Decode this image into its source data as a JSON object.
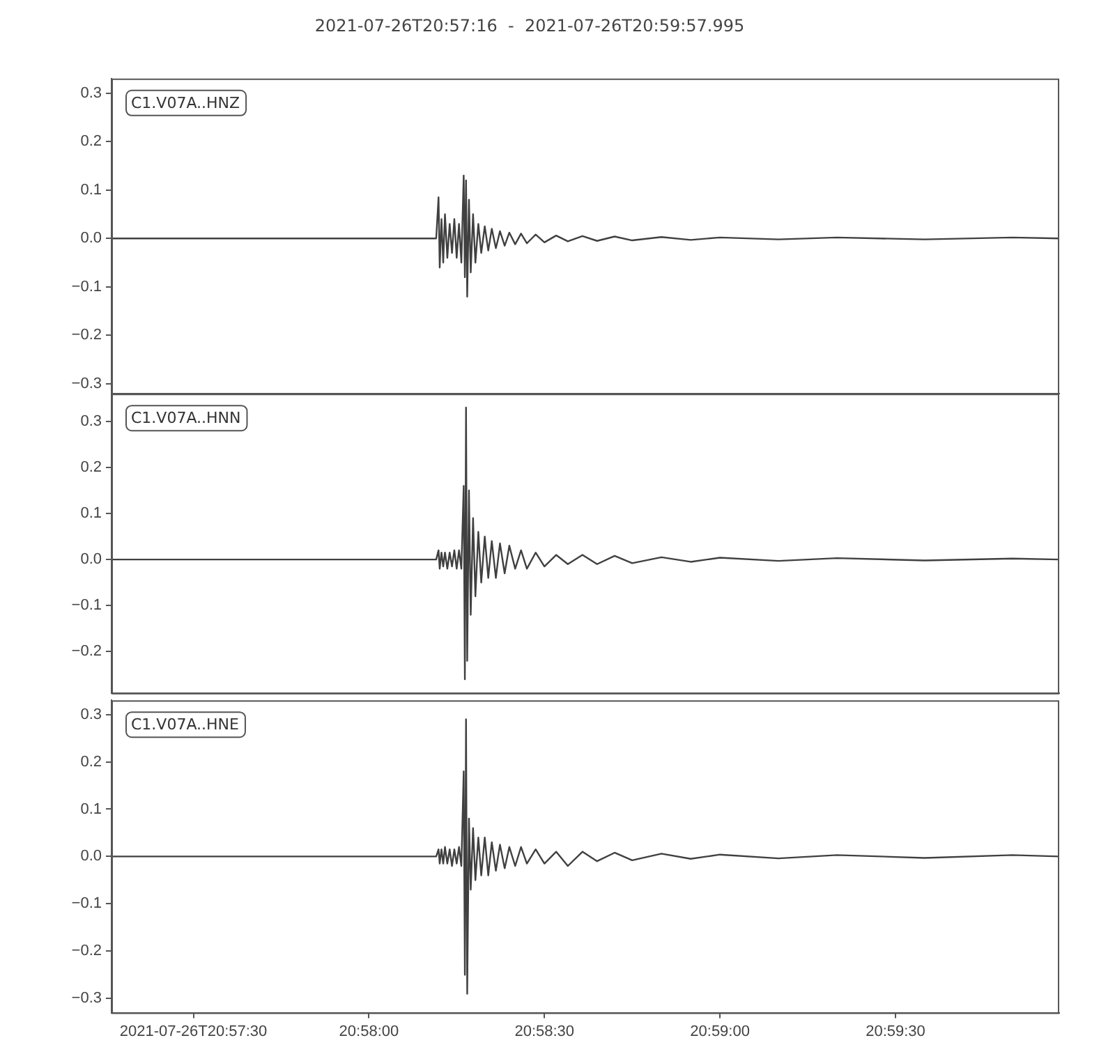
{
  "chart_data": [
    {
      "type": "line",
      "title": "2021-07-26T20:57:16  -  2021-07-26T20:59:57.995",
      "x": [
        "2021-07-26T20:57:16",
        "2021-07-26T20:57:40",
        "2021-07-26T20:58:00",
        "2021-07-26T20:58:11.5",
        "2021-07-26T20:58:11.9",
        "2021-07-26T20:58:12.1",
        "2021-07-26T20:58:12.4",
        "2021-07-26T20:58:12.7",
        "2021-07-26T20:58:13.0",
        "2021-07-26T20:58:13.4",
        "2021-07-26T20:58:13.8",
        "2021-07-26T20:58:14.2",
        "2021-07-26T20:58:14.6",
        "2021-07-26T20:58:15.0",
        "2021-07-26T20:58:15.4",
        "2021-07-26T20:58:15.8",
        "2021-07-26T20:58:16.2",
        "2021-07-26T20:58:16.4",
        "2021-07-26T20:58:16.6",
        "2021-07-26T20:58:16.8",
        "2021-07-26T20:58:17.1",
        "2021-07-26T20:58:17.4",
        "2021-07-26T20:58:17.8",
        "2021-07-26T20:58:18.2",
        "2021-07-26T20:58:18.7",
        "2021-07-26T20:58:19.2",
        "2021-07-26T20:58:19.8",
        "2021-07-26T20:58:20.4",
        "2021-07-26T20:58:21.0",
        "2021-07-26T20:58:21.7",
        "2021-07-26T20:58:22.4",
        "2021-07-26T20:58:23.2",
        "2021-07-26T20:58:24.0",
        "2021-07-26T20:58:25.0",
        "2021-07-26T20:58:26.0",
        "2021-07-26T20:58:27.0",
        "2021-07-26T20:58:28.5",
        "2021-07-26T20:58:30.0",
        "2021-07-26T20:58:32.0",
        "2021-07-26T20:58:34.0",
        "2021-07-26T20:58:36.5",
        "2021-07-26T20:58:39.0",
        "2021-07-26T20:58:42.0",
        "2021-07-26T20:58:45.0",
        "2021-07-26T20:58:50.0",
        "2021-07-26T20:58:55.0",
        "2021-07-26T20:59:00.0",
        "2021-07-26T20:59:10.0",
        "2021-07-26T20:59:20.0",
        "2021-07-26T20:59:35.0",
        "2021-07-26T20:59:50.0",
        "2021-07-26T20:59:57.995"
      ],
      "series": [
        {
          "name": "C1.V07A..HNZ",
          "color": "#404040",
          "values": [
            0,
            0,
            0,
            0,
            0.085,
            -0.06,
            0.04,
            -0.05,
            0.05,
            -0.04,
            0.03,
            -0.03,
            0.04,
            -0.04,
            0.03,
            -0.05,
            0.13,
            -0.08,
            0.12,
            -0.12,
            0.08,
            -0.07,
            0.05,
            -0.05,
            0.03,
            -0.03,
            0.025,
            -0.025,
            0.02,
            -0.02,
            0.015,
            -0.015,
            0.012,
            -0.012,
            0.01,
            -0.01,
            0.008,
            -0.008,
            0.006,
            -0.006,
            0.005,
            -0.005,
            0.004,
            -0.004,
            0.003,
            -0.003,
            0.002,
            -0.002,
            0.002,
            -0.002,
            0.002,
            0
          ]
        }
      ],
      "xlim": [
        "2021-07-26T20:57:16",
        "2021-07-26T20:59:57.995"
      ],
      "ylim": [
        -0.32,
        0.33
      ],
      "yticks": [
        {
          "value": -0.3,
          "label": "−0.3"
        },
        {
          "value": -0.2,
          "label": "−0.2"
        },
        {
          "value": -0.1,
          "label": "−0.1"
        },
        {
          "value": 0,
          "label": "0.0"
        },
        {
          "value": 0.1,
          "label": "0.1"
        },
        {
          "value": 0.2,
          "label": "0.2"
        },
        {
          "value": 0.3,
          "label": "0.3"
        }
      ],
      "tick_labels": "y",
      "legend": "top left",
      "marker": "none",
      "line_style": "solid"
    },
    {
      "type": "line",
      "x": [
        "2021-07-26T20:57:16",
        "2021-07-26T20:57:40",
        "2021-07-26T20:58:00",
        "2021-07-26T20:58:11.5",
        "2021-07-26T20:58:11.9",
        "2021-07-26T20:58:12.1",
        "2021-07-26T20:58:12.4",
        "2021-07-26T20:58:12.7",
        "2021-07-26T20:58:13.0",
        "2021-07-26T20:58:13.4",
        "2021-07-26T20:58:13.8",
        "2021-07-26T20:58:14.2",
        "2021-07-26T20:58:14.6",
        "2021-07-26T20:58:15.0",
        "2021-07-26T20:58:15.4",
        "2021-07-26T20:58:15.8",
        "2021-07-26T20:58:16.2",
        "2021-07-26T20:58:16.4",
        "2021-07-26T20:58:16.6",
        "2021-07-26T20:58:16.8",
        "2021-07-26T20:58:17.1",
        "2021-07-26T20:58:17.4",
        "2021-07-26T20:58:17.8",
        "2021-07-26T20:58:18.2",
        "2021-07-26T20:58:18.7",
        "2021-07-26T20:58:19.2",
        "2021-07-26T20:58:19.8",
        "2021-07-26T20:58:20.4",
        "2021-07-26T20:58:21.0",
        "2021-07-26T20:58:21.7",
        "2021-07-26T20:58:22.4",
        "2021-07-26T20:58:23.2",
        "2021-07-26T20:58:24.0",
        "2021-07-26T20:58:25.0",
        "2021-07-26T20:58:26.0",
        "2021-07-26T20:58:27.0",
        "2021-07-26T20:58:28.5",
        "2021-07-26T20:58:30.0",
        "2021-07-26T20:58:32.0",
        "2021-07-26T20:58:34.0",
        "2021-07-26T20:58:36.5",
        "2021-07-26T20:58:39.0",
        "2021-07-26T20:58:42.0",
        "2021-07-26T20:58:45.0",
        "2021-07-26T20:58:50.0",
        "2021-07-26T20:58:55.0",
        "2021-07-26T20:59:00.0",
        "2021-07-26T20:59:10.0",
        "2021-07-26T20:59:20.0",
        "2021-07-26T20:59:35.0",
        "2021-07-26T20:59:50.0",
        "2021-07-26T20:59:57.995"
      ],
      "series": [
        {
          "name": "C1.V07A..HNN",
          "color": "#404040",
          "values": [
            0,
            0,
            0,
            0,
            0.02,
            -0.02,
            0.015,
            -0.015,
            0.015,
            -0.02,
            0.015,
            -0.015,
            0.02,
            -0.02,
            0.02,
            -0.02,
            0.16,
            -0.26,
            0.33,
            -0.22,
            0.15,
            -0.12,
            0.09,
            -0.08,
            0.06,
            -0.05,
            0.05,
            -0.04,
            0.04,
            -0.04,
            0.035,
            -0.03,
            0.03,
            -0.02,
            0.02,
            -0.02,
            0.015,
            -0.015,
            0.01,
            -0.01,
            0.01,
            -0.01,
            0.008,
            -0.008,
            0.005,
            -0.005,
            0.004,
            -0.003,
            0.003,
            -0.002,
            0.002,
            0
          ]
        }
      ],
      "xlim": [
        "2021-07-26T20:57:16",
        "2021-07-26T20:59:57.995"
      ],
      "ylim": [
        -0.29,
        0.36
      ],
      "yticks": [
        {
          "value": -0.2,
          "label": "−0.2"
        },
        {
          "value": -0.1,
          "label": "−0.1"
        },
        {
          "value": 0,
          "label": "0.0"
        },
        {
          "value": 0.1,
          "label": "0.1"
        },
        {
          "value": 0.2,
          "label": "0.2"
        },
        {
          "value": 0.3,
          "label": "0.3"
        }
      ],
      "tick_labels": "y",
      "legend": "top left",
      "marker": "none",
      "line_style": "solid"
    },
    {
      "type": "line",
      "x": [
        "2021-07-26T20:57:16",
        "2021-07-26T20:57:40",
        "2021-07-26T20:58:00",
        "2021-07-26T20:58:11.5",
        "2021-07-26T20:58:11.9",
        "2021-07-26T20:58:12.1",
        "2021-07-26T20:58:12.4",
        "2021-07-26T20:58:12.7",
        "2021-07-26T20:58:13.0",
        "2021-07-26T20:58:13.4",
        "2021-07-26T20:58:13.8",
        "2021-07-26T20:58:14.2",
        "2021-07-26T20:58:14.6",
        "2021-07-26T20:58:15.0",
        "2021-07-26T20:58:15.4",
        "2021-07-26T20:58:15.8",
        "2021-07-26T20:58:16.2",
        "2021-07-26T20:58:16.4",
        "2021-07-26T20:58:16.6",
        "2021-07-26T20:58:16.8",
        "2021-07-26T20:58:17.1",
        "2021-07-26T20:58:17.4",
        "2021-07-26T20:58:17.8",
        "2021-07-26T20:58:18.2",
        "2021-07-26T20:58:18.7",
        "2021-07-26T20:58:19.2",
        "2021-07-26T20:58:19.8",
        "2021-07-26T20:58:20.4",
        "2021-07-26T20:58:21.0",
        "2021-07-26T20:58:21.7",
        "2021-07-26T20:58:22.4",
        "2021-07-26T20:58:23.2",
        "2021-07-26T20:58:24.0",
        "2021-07-26T20:58:25.0",
        "2021-07-26T20:58:26.0",
        "2021-07-26T20:58:27.0",
        "2021-07-26T20:58:28.5",
        "2021-07-26T20:58:30.0",
        "2021-07-26T20:58:32.0",
        "2021-07-26T20:58:34.0",
        "2021-07-26T20:58:36.5",
        "2021-07-26T20:58:39.0",
        "2021-07-26T20:58:42.0",
        "2021-07-26T20:58:45.0",
        "2021-07-26T20:58:50.0",
        "2021-07-26T20:58:55.0",
        "2021-07-26T20:59:00.0",
        "2021-07-26T20:59:10.0",
        "2021-07-26T20:59:20.0",
        "2021-07-26T20:59:35.0",
        "2021-07-26T20:59:50.0",
        "2021-07-26T20:59:57.995"
      ],
      "series": [
        {
          "name": "C1.V07A..HNE",
          "color": "#404040",
          "values": [
            0,
            0,
            0,
            0,
            0.015,
            -0.015,
            0.015,
            -0.015,
            0.02,
            -0.015,
            0.015,
            -0.02,
            0.015,
            -0.015,
            0.02,
            -0.02,
            0.18,
            -0.25,
            0.29,
            -0.29,
            0.08,
            -0.07,
            0.06,
            -0.05,
            0.04,
            -0.04,
            0.04,
            -0.04,
            0.03,
            -0.03,
            0.025,
            -0.025,
            0.02,
            -0.02,
            0.02,
            -0.015,
            0.015,
            -0.015,
            0.01,
            -0.02,
            0.01,
            -0.01,
            0.008,
            -0.008,
            0.006,
            -0.005,
            0.004,
            -0.004,
            0.003,
            -0.003,
            0.003,
            0
          ]
        }
      ],
      "xlim": [
        "2021-07-26T20:57:16",
        "2021-07-26T20:59:57.995"
      ],
      "xticks": [
        {
          "value": "2021-07-26T20:57:30",
          "label": "2021-07-26T20:57:30"
        },
        {
          "value": "2021-07-26T20:58:00",
          "label": "20:58:00"
        },
        {
          "value": "2021-07-26T20:58:30",
          "label": "20:58:30"
        },
        {
          "value": "2021-07-26T20:59:00",
          "label": "20:59:00"
        },
        {
          "value": "2021-07-26T20:59:30",
          "label": "20:59:30"
        }
      ],
      "ylim": [
        -0.33,
        0.33
      ],
      "yticks": [
        {
          "value": -0.3,
          "label": "−0.3"
        },
        {
          "value": -0.2,
          "label": "−0.2"
        },
        {
          "value": -0.1,
          "label": "−0.1"
        },
        {
          "value": 0,
          "label": "0.0"
        },
        {
          "value": 0.1,
          "label": "0.1"
        },
        {
          "value": 0.2,
          "label": "0.2"
        },
        {
          "value": 0.3,
          "label": "0.3"
        }
      ],
      "legend": "top left",
      "marker": "none",
      "line_style": "solid"
    }
  ]
}
